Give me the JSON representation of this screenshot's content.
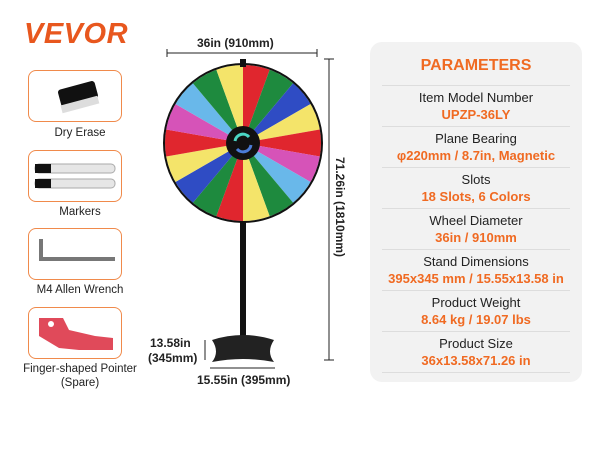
{
  "brand": "VEVOR",
  "accessories": [
    {
      "label": "Dry Erase",
      "icon": "eraser-icon"
    },
    {
      "label": "Markers",
      "icon": "markers-icon"
    },
    {
      "label": "M4 Allen Wrench",
      "icon": "allen-wrench-icon"
    },
    {
      "label": "Finger-shaped Pointer (Spare)",
      "icon": "pointer-icon"
    }
  ],
  "dimensions": {
    "width": "36in (910mm)",
    "height": "71.26in (1810mm)",
    "base_depth_in": "13.58in",
    "base_depth_mm": "(345mm)",
    "base_width": "15.55in (395mm)"
  },
  "wheel": {
    "slot_colors": [
      "#e0262e",
      "#1e8a3e",
      "#2f4cc4",
      "#f4e46a",
      "#e0262e",
      "#d653b8",
      "#69b8ea",
      "#1e8a3e",
      "#f4e46a"
    ]
  },
  "parameters": {
    "title": "PARAMETERS",
    "rows": [
      {
        "label": "Item Model Number",
        "value": "UPZP-36LY"
      },
      {
        "label": "Plane Bearing",
        "value": "φ220mm / 8.7in, Magnetic"
      },
      {
        "label": "Slots",
        "value": "18 Slots, 6 Colors"
      },
      {
        "label": "Wheel Diameter",
        "value": "36in / 910mm"
      },
      {
        "label": "Stand Dimensions",
        "value": "395x345 mm / 15.55x13.58 in"
      },
      {
        "label": "Product Weight",
        "value": "8.64 kg / 19.07 lbs"
      },
      {
        "label": "Product Size",
        "value": "36x13.58x71.26 in"
      }
    ]
  },
  "colors": {
    "accent": "#f06a22",
    "brand": "#e8571e"
  }
}
